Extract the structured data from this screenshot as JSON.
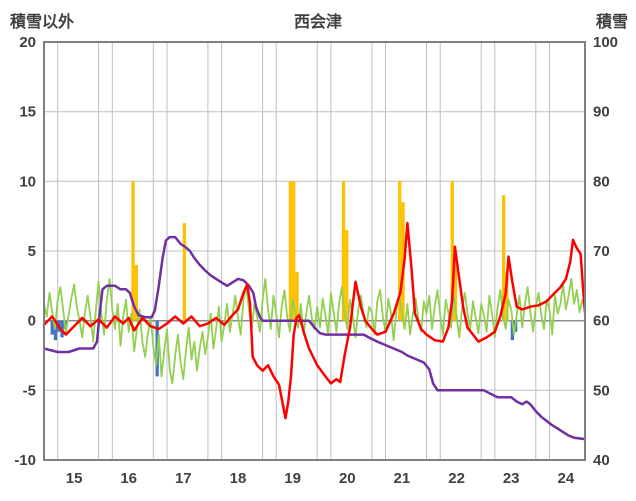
{
  "chart_data": {
    "type": "mixed",
    "title": "西会津",
    "left_axis": {
      "title": "積雪以外",
      "min": -10,
      "max": 20,
      "ticks": [
        -10,
        -5,
        0,
        5,
        10,
        15,
        20
      ],
      "tick_labels": [
        "-10",
        "-5",
        "0",
        "5",
        "10",
        "15",
        "20"
      ]
    },
    "right_axis": {
      "title": "積雪",
      "min": 40,
      "max": 100,
      "ticks": [
        40,
        50,
        60,
        70,
        80,
        90,
        100
      ],
      "tick_labels": [
        "40",
        "50",
        "60",
        "70",
        "80",
        "90",
        "100"
      ]
    },
    "x_axis": {
      "min": 14.45,
      "max": 24.35,
      "ticks": [
        15,
        16,
        17,
        18,
        19,
        20,
        21,
        22,
        23,
        24
      ],
      "tick_labels": [
        "15",
        "16",
        "17",
        "18",
        "19",
        "20",
        "21",
        "22",
        "23",
        "24"
      ],
      "gridlines": [
        14.45,
        14.7,
        15.45,
        15.7,
        16.45,
        16.7,
        17.45,
        17.7,
        18.45,
        18.7,
        19.45,
        19.7,
        20.45,
        20.7,
        21.45,
        21.7,
        22.45,
        22.7,
        23.45,
        23.7
      ]
    },
    "colors": {
      "grid": "#BFBFBF",
      "zero_line": "#8C8C8C",
      "border": "#7F7F7F",
      "orange": "#FFC000",
      "blue": "#4472C4",
      "green": "#92D050",
      "red": "#FF0000",
      "purple": "#7030A0",
      "text": "#404040"
    },
    "legend": "none",
    "series": [
      {
        "name": "orange-bars",
        "type": "bar",
        "axis": "left",
        "color": "#FFC000",
        "bar_width": 0.06,
        "points": [
          [
            16.08,
            10
          ],
          [
            16.14,
            4
          ],
          [
            17.02,
            7
          ],
          [
            18.96,
            10
          ],
          [
            19.02,
            10
          ],
          [
            19.08,
            3.5
          ],
          [
            19.93,
            10
          ],
          [
            19.99,
            6.5
          ],
          [
            20.96,
            10
          ],
          [
            21.02,
            8.5
          ],
          [
            21.92,
            10
          ],
          [
            21.98,
            5
          ],
          [
            22.86,
            9
          ],
          [
            22.92,
            3.5
          ]
        ]
      },
      {
        "name": "blue-bars",
        "type": "bar",
        "axis": "left",
        "color": "#4472C4",
        "bar_width": 0.06,
        "points": [
          [
            14.6,
            -1.0
          ],
          [
            14.66,
            -1.4
          ],
          [
            14.72,
            -0.8
          ],
          [
            14.78,
            -1.2
          ],
          [
            14.84,
            -0.6
          ],
          [
            16.52,
            -4.0
          ],
          [
            23.02,
            -1.4
          ],
          [
            23.08,
            -0.8
          ]
        ]
      },
      {
        "name": "green-line",
        "type": "line",
        "axis": "left",
        "color": "#92D050",
        "width": 1.8,
        "x_start": 14.45,
        "x_step": 0.05,
        "y_values": [
          1.2,
          0.3,
          2.0,
          0.6,
          -0.6,
          1.5,
          2.4,
          0.8,
          -0.9,
          0.4,
          1.6,
          2.6,
          1.0,
          0.0,
          -1.2,
          0.6,
          1.8,
          0.3,
          -1.5,
          0.8,
          2.8,
          0.5,
          -1.0,
          1.5,
          3.0,
          0.8,
          -0.6,
          1.2,
          -1.8,
          0.3,
          1.5,
          -0.8,
          0.5,
          -2.2,
          -0.6,
          0.8,
          -1.5,
          -2.6,
          -1.0,
          0.2,
          -1.8,
          -3.2,
          -1.0,
          -4.0,
          -2.2,
          -0.6,
          -3.5,
          -4.5,
          -2.5,
          -1.0,
          -3.0,
          -4.2,
          -2.0,
          -0.5,
          -2.8,
          -1.5,
          -3.6,
          -2.0,
          -0.8,
          -2.4,
          -1.2,
          0.5,
          -2.0,
          -0.6,
          1.0,
          -1.5,
          -0.3,
          1.2,
          -0.8,
          0.4,
          1.8,
          0.2,
          -1.0,
          1.5,
          2.5,
          0.8,
          -0.6,
          1.2,
          0.3,
          -0.8,
          1.5,
          3.0,
          0.8,
          -0.6,
          1.8,
          0.5,
          -1.2,
          1.0,
          2.2,
          0.3,
          -0.8,
          1.5,
          0.6,
          -0.5,
          1.2,
          -1.0,
          0.5,
          1.8,
          0.2,
          -0.6,
          1.0,
          -0.5,
          1.6,
          0.4,
          -1.0,
          2.0,
          0.6,
          -0.8,
          1.2,
          2.4,
          0.5,
          -0.6,
          1.5,
          0.3,
          -1.2,
          0.8,
          1.8,
          0.4,
          -0.5,
          1.0,
          0.6,
          -1.0,
          1.4,
          2.2,
          0.3,
          -0.8,
          1.6,
          0.5,
          -1.4,
          0.8,
          2.0,
          0.4,
          -0.6,
          1.2,
          -1.0,
          0.5,
          1.6,
          0.2,
          -0.8,
          1.4,
          0.5,
          1.8,
          -0.6,
          1.0,
          2.2,
          0.4,
          -1.0,
          1.5,
          0.6,
          -0.5,
          1.8,
          0.3,
          -1.2,
          0.8,
          2.0,
          0.5,
          -0.6,
          1.4,
          0.2,
          -0.9,
          1.2,
          0.4,
          -0.8,
          1.8,
          0.5,
          -1.2,
          1.0,
          2.2,
          0.3,
          -0.6,
          1.5,
          0.8,
          -1.0,
          0.4,
          1.8,
          -0.5,
          1.2,
          2.4,
          0.6,
          -0.8,
          1.0,
          2.0,
          0.4,
          -0.6,
          1.5,
          0.8,
          -1.0,
          1.8,
          0.5,
          1.2,
          2.6,
          0.8,
          1.8,
          3.0,
          1.2,
          2.2,
          0.6,
          1.5,
          0.9
        ]
      },
      {
        "name": "purple-line",
        "type": "line",
        "axis": "right",
        "color": "#7030A0",
        "width": 2.5,
        "points": [
          [
            14.45,
            56
          ],
          [
            14.7,
            55.5
          ],
          [
            14.9,
            55.5
          ],
          [
            15.1,
            56
          ],
          [
            15.35,
            56
          ],
          [
            15.42,
            57
          ],
          [
            15.47,
            61
          ],
          [
            15.52,
            64.5
          ],
          [
            15.6,
            65
          ],
          [
            15.75,
            65
          ],
          [
            15.85,
            64.5
          ],
          [
            15.95,
            64.5
          ],
          [
            16.02,
            64
          ],
          [
            16.1,
            62
          ],
          [
            16.18,
            60.8
          ],
          [
            16.3,
            60.5
          ],
          [
            16.42,
            60.5
          ],
          [
            16.48,
            61.5
          ],
          [
            16.55,
            65
          ],
          [
            16.62,
            69
          ],
          [
            16.68,
            71.5
          ],
          [
            16.75,
            72
          ],
          [
            16.85,
            72
          ],
          [
            16.95,
            71
          ],
          [
            17.05,
            70.5
          ],
          [
            17.12,
            70
          ],
          [
            17.2,
            69
          ],
          [
            17.3,
            68
          ],
          [
            17.4,
            67.2
          ],
          [
            17.5,
            66.5
          ],
          [
            17.6,
            66
          ],
          [
            17.7,
            65.5
          ],
          [
            17.8,
            65
          ],
          [
            17.9,
            65.5
          ],
          [
            18.0,
            66
          ],
          [
            18.1,
            65.8
          ],
          [
            18.2,
            65
          ],
          [
            18.28,
            64
          ],
          [
            18.33,
            62
          ],
          [
            18.4,
            60.5
          ],
          [
            18.45,
            60
          ],
          [
            19.3,
            60
          ],
          [
            19.4,
            59
          ],
          [
            19.5,
            58.2
          ],
          [
            19.6,
            58
          ],
          [
            20.3,
            58
          ],
          [
            20.42,
            57.5
          ],
          [
            20.55,
            57
          ],
          [
            20.7,
            56.5
          ],
          [
            20.85,
            56
          ],
          [
            21.0,
            55.5
          ],
          [
            21.1,
            55
          ],
          [
            21.25,
            54.5
          ],
          [
            21.4,
            54
          ],
          [
            21.5,
            53
          ],
          [
            21.57,
            51
          ],
          [
            21.65,
            50
          ],
          [
            22.5,
            50
          ],
          [
            22.62,
            49.5
          ],
          [
            22.75,
            49
          ],
          [
            23.0,
            49
          ],
          [
            23.1,
            48.4
          ],
          [
            23.2,
            48
          ],
          [
            23.28,
            48.4
          ],
          [
            23.35,
            48
          ],
          [
            23.45,
            47
          ],
          [
            23.55,
            46.2
          ],
          [
            23.65,
            45.6
          ],
          [
            23.75,
            45
          ],
          [
            23.85,
            44.5
          ],
          [
            23.95,
            44
          ],
          [
            24.05,
            43.5
          ],
          [
            24.15,
            43.2
          ],
          [
            24.35,
            43
          ]
        ]
      },
      {
        "name": "red-line",
        "type": "line",
        "axis": "left",
        "color": "#FF0000",
        "width": 2.5,
        "points": [
          [
            14.45,
            -0.3
          ],
          [
            14.6,
            0.3
          ],
          [
            14.75,
            -0.6
          ],
          [
            14.85,
            -1.0
          ],
          [
            15.0,
            -0.4
          ],
          [
            15.15,
            0.2
          ],
          [
            15.3,
            -0.4
          ],
          [
            15.45,
            0.1
          ],
          [
            15.6,
            -0.5
          ],
          [
            15.75,
            0.3
          ],
          [
            15.9,
            -0.2
          ],
          [
            16.0,
            0.2
          ],
          [
            16.1,
            -0.7
          ],
          [
            16.25,
            0.2
          ],
          [
            16.4,
            -0.4
          ],
          [
            16.55,
            -0.6
          ],
          [
            16.7,
            -0.2
          ],
          [
            16.85,
            0.3
          ],
          [
            17.0,
            -0.2
          ],
          [
            17.15,
            0.3
          ],
          [
            17.3,
            -0.4
          ],
          [
            17.45,
            -0.2
          ],
          [
            17.6,
            0.2
          ],
          [
            17.75,
            -0.3
          ],
          [
            17.9,
            0.4
          ],
          [
            18.0,
            0.8
          ],
          [
            18.1,
            2.0
          ],
          [
            18.17,
            2.6
          ],
          [
            18.22,
            1.2
          ],
          [
            18.27,
            -2.6
          ],
          [
            18.35,
            -3.2
          ],
          [
            18.45,
            -3.6
          ],
          [
            18.55,
            -3.2
          ],
          [
            18.65,
            -4.0
          ],
          [
            18.75,
            -4.6
          ],
          [
            18.82,
            -6.0
          ],
          [
            18.87,
            -7.0
          ],
          [
            18.92,
            -5.8
          ],
          [
            18.97,
            -4.0
          ],
          [
            19.02,
            -1.0
          ],
          [
            19.07,
            0.2
          ],
          [
            19.12,
            0.4
          ],
          [
            19.2,
            -0.8
          ],
          [
            19.3,
            -2.0
          ],
          [
            19.45,
            -3.2
          ],
          [
            19.6,
            -4.0
          ],
          [
            19.7,
            -4.5
          ],
          [
            19.8,
            -4.2
          ],
          [
            19.87,
            -4.4
          ],
          [
            19.95,
            -2.5
          ],
          [
            20.05,
            -0.5
          ],
          [
            20.15,
            2.8
          ],
          [
            20.25,
            1.0
          ],
          [
            20.33,
            0.0
          ],
          [
            20.45,
            -0.6
          ],
          [
            20.55,
            -1.0
          ],
          [
            20.7,
            -0.8
          ],
          [
            20.85,
            0.5
          ],
          [
            20.97,
            2.0
          ],
          [
            21.05,
            4.5
          ],
          [
            21.1,
            7.0
          ],
          [
            21.17,
            4.0
          ],
          [
            21.24,
            0.5
          ],
          [
            21.35,
            -0.6
          ],
          [
            21.45,
            -1.0
          ],
          [
            21.6,
            -1.4
          ],
          [
            21.75,
            -1.5
          ],
          [
            21.85,
            -0.5
          ],
          [
            21.92,
            1.5
          ],
          [
            21.97,
            5.3
          ],
          [
            22.05,
            3.0
          ],
          [
            22.12,
            1.0
          ],
          [
            22.2,
            -0.5
          ],
          [
            22.3,
            -1.0
          ],
          [
            22.4,
            -1.5
          ],
          [
            22.55,
            -1.2
          ],
          [
            22.7,
            -0.8
          ],
          [
            22.8,
            0.3
          ],
          [
            22.9,
            2.0
          ],
          [
            22.95,
            4.6
          ],
          [
            23.02,
            2.8
          ],
          [
            23.1,
            1.0
          ],
          [
            23.2,
            0.8
          ],
          [
            23.35,
            1.0
          ],
          [
            23.5,
            1.1
          ],
          [
            23.65,
            1.4
          ],
          [
            23.8,
            2.0
          ],
          [
            23.9,
            2.4
          ],
          [
            24.0,
            3.0
          ],
          [
            24.08,
            4.2
          ],
          [
            24.13,
            5.8
          ],
          [
            24.2,
            5.2
          ],
          [
            24.27,
            4.8
          ],
          [
            24.32,
            2.0
          ],
          [
            24.35,
            0.6
          ]
        ]
      }
    ]
  }
}
